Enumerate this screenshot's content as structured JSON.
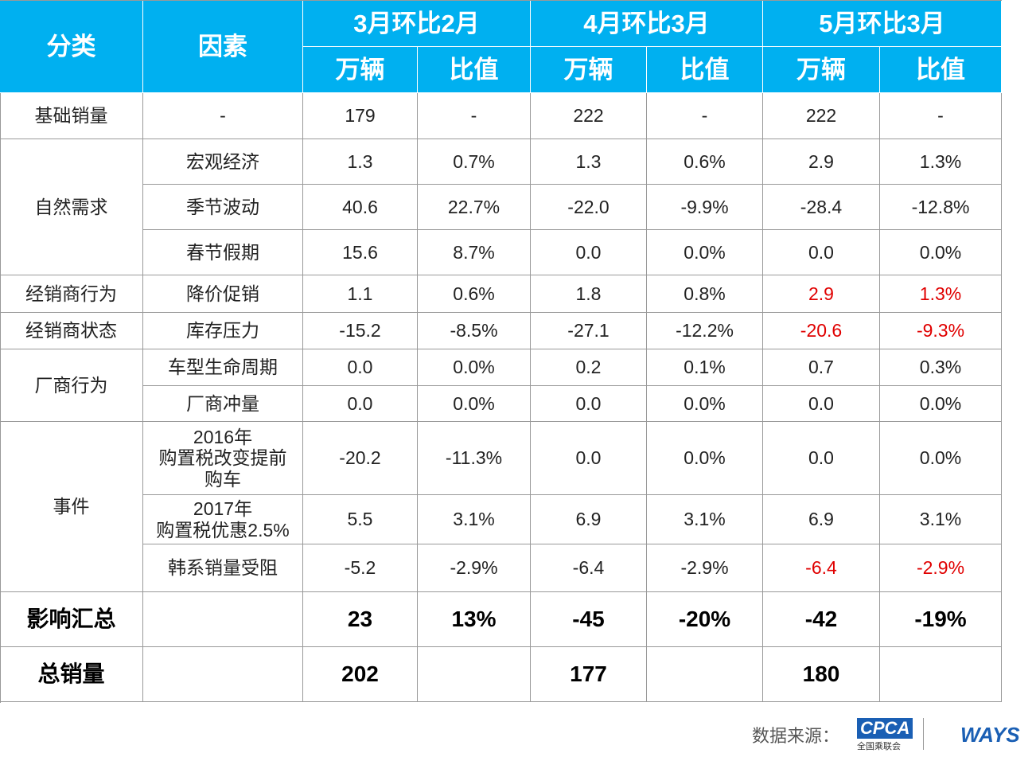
{
  "table": {
    "header": {
      "category": "分类",
      "factor": "因素",
      "groups": [
        {
          "title": "3月环比2月",
          "sub": [
            "万辆",
            "比值"
          ]
        },
        {
          "title": "4月环比3月",
          "sub": [
            "万辆",
            "比值"
          ]
        },
        {
          "title": "5月环比3月",
          "sub": [
            "万辆",
            "比值"
          ]
        }
      ]
    },
    "highlight_color": "#e00000",
    "groups": [
      {
        "category": "基础销量",
        "rows": [
          {
            "factor": "-",
            "cells": [
              "179",
              "-",
              "222",
              "-",
              "222",
              "-"
            ]
          }
        ]
      },
      {
        "category": "自然需求",
        "rows": [
          {
            "factor": "宏观经济",
            "cells": [
              "1.3",
              "0.7%",
              "1.3",
              "0.6%",
              "2.9",
              "1.3%"
            ]
          },
          {
            "factor": "季节波动",
            "cells": [
              "40.6",
              "22.7%",
              "-22.0",
              "-9.9%",
              "-28.4",
              "-12.8%"
            ]
          },
          {
            "factor": "春节假期",
            "cells": [
              "15.6",
              "8.7%",
              "0.0",
              "0.0%",
              "0.0",
              "0.0%"
            ]
          }
        ]
      },
      {
        "category": "经销商行为",
        "rows": [
          {
            "factor": "降价促销",
            "cells": [
              "1.1",
              "0.6%",
              "1.8",
              "0.8%",
              "2.9",
              "1.3%"
            ],
            "red_cells": [
              4,
              5
            ]
          }
        ]
      },
      {
        "category": "经销商状态",
        "rows": [
          {
            "factor": "库存压力",
            "cells": [
              "-15.2",
              "-8.5%",
              "-27.1",
              "-12.2%",
              "-20.6",
              "-9.3%"
            ],
            "red_cells": [
              4,
              5
            ]
          }
        ]
      },
      {
        "category": "厂商行为",
        "rows": [
          {
            "factor": "车型生命周期",
            "cells": [
              "0.0",
              "0.0%",
              "0.2",
              "0.1%",
              "0.7",
              "0.3%"
            ]
          },
          {
            "factor": "厂商冲量",
            "cells": [
              "0.0",
              "0.0%",
              "0.0",
              "0.0%",
              "0.0",
              "0.0%"
            ]
          }
        ]
      },
      {
        "category": "事件",
        "rows": [
          {
            "factor": "2016年\n购置税改变提前\n购车",
            "cells": [
              "-20.2",
              "-11.3%",
              "0.0",
              "0.0%",
              "0.0",
              "0.0%"
            ]
          },
          {
            "factor": "2017年\n购置税优惠2.5%",
            "cells": [
              "5.5",
              "3.1%",
              "6.9",
              "3.1%",
              "6.9",
              "3.1%"
            ]
          },
          {
            "factor": "韩系销量受阻",
            "cells": [
              "-5.2",
              "-2.9%",
              "-6.4",
              "-2.9%",
              "-6.4",
              "-2.9%"
            ],
            "red_cells": [
              4,
              5
            ]
          }
        ]
      },
      {
        "category": "影响汇总",
        "bold": true,
        "rows": [
          {
            "factor": null,
            "cells": [
              "23",
              "13%",
              "-45",
              "-20%",
              "-42",
              "-19%"
            ]
          }
        ]
      },
      {
        "category": "总销量",
        "bold": true,
        "rows": [
          {
            "factor": null,
            "cells": [
              "202",
              null,
              "177",
              null,
              "180",
              null
            ]
          }
        ]
      }
    ]
  },
  "footer": {
    "source": "数据来源：",
    "logo1": "CPCA",
    "logo1_sub": "全国乘联会",
    "logo2": "WAYS"
  }
}
